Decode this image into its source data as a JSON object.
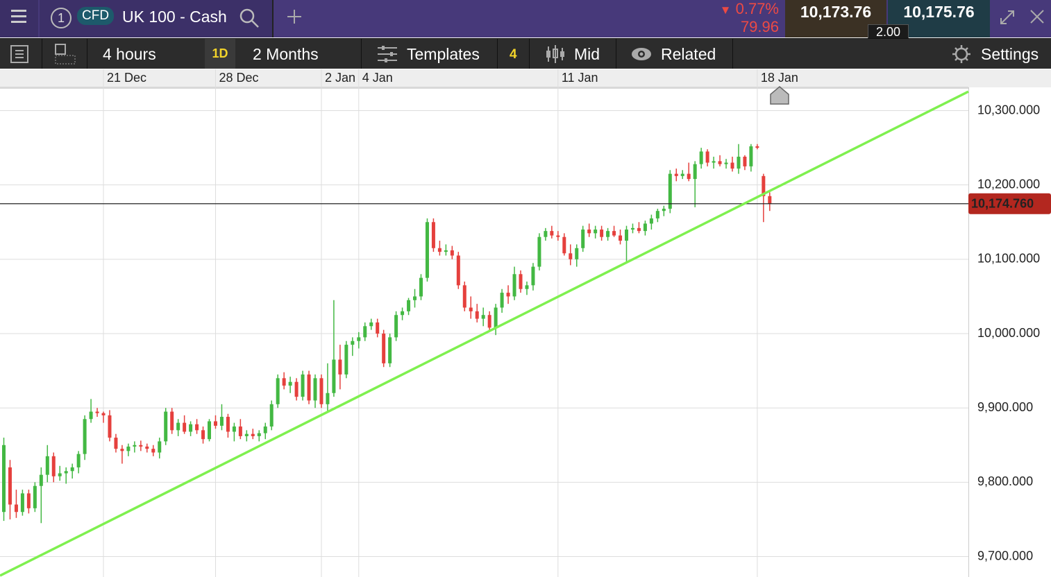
{
  "header": {
    "tab_number": "1",
    "instrument_type": "CFD",
    "instrument_name": "UK 100 - Cash",
    "change_percent": "0.77%",
    "change_points": "79.96",
    "sell_price": "10,173.76",
    "buy_price": "10,175.76",
    "spread": "2.00"
  },
  "toolbar": {
    "interval": "4 hours",
    "interval_badge": "1D",
    "range": "2 Months",
    "templates": "Templates",
    "templates_count": "4",
    "price_type": "Mid",
    "related": "Related",
    "settings": "Settings"
  },
  "chart_data": {
    "type": "candlestick",
    "categories": [
      null,
      null,
      null,
      null,
      null,
      null,
      null,
      null,
      null,
      null,
      null,
      null,
      null,
      null,
      null,
      null,
      "21 Dec",
      null,
      null,
      null,
      null,
      null,
      null,
      null,
      null,
      null,
      null,
      null,
      null,
      null,
      null,
      null,
      null,
      null,
      "28 Dec",
      null,
      null,
      null,
      null,
      null,
      null,
      null,
      null,
      null,
      null,
      null,
      null,
      null,
      null,
      null,
      null,
      "2 Jan",
      null,
      null,
      null,
      null,
      null,
      "4 Jan",
      null,
      null,
      null,
      null,
      null,
      null,
      null,
      null,
      null,
      null,
      null,
      null,
      null,
      null,
      null,
      null,
      null,
      null,
      null,
      null,
      null,
      null,
      null,
      null,
      null,
      null,
      null,
      null,
      null,
      null,
      null,
      "11 Jan",
      null,
      null,
      null,
      null,
      null,
      null,
      null,
      null,
      null,
      null,
      null,
      null,
      null,
      null,
      null,
      null,
      null,
      null,
      null,
      null,
      null,
      null,
      null,
      null,
      null,
      null,
      null,
      null,
      null,
      null,
      null,
      "18 Jan",
      null,
      null
    ],
    "candles": [
      [
        9760,
        9860,
        9748,
        9850
      ],
      [
        9820,
        9830,
        9750,
        9770
      ],
      [
        9770,
        9790,
        9752,
        9760
      ],
      [
        9760,
        9790,
        9755,
        9785
      ],
      [
        9785,
        9790,
        9758,
        9765
      ],
      [
        9765,
        9800,
        9760,
        9795
      ],
      [
        9795,
        9820,
        9745,
        9810
      ],
      [
        9810,
        9850,
        9800,
        9835
      ],
      [
        9835,
        9840,
        9800,
        9808
      ],
      [
        9808,
        9822,
        9802,
        9812
      ],
      [
        9812,
        9820,
        9798,
        9815
      ],
      [
        9815,
        9825,
        9805,
        9820
      ],
      [
        9820,
        9842,
        9812,
        9838
      ],
      [
        9838,
        9890,
        9830,
        9885
      ],
      [
        9885,
        9912,
        9880,
        9895
      ],
      [
        9895,
        9900,
        9888,
        9893
      ],
      [
        9893,
        9895,
        9880,
        9890
      ],
      [
        9890,
        9897,
        9855,
        9860
      ],
      [
        9860,
        9865,
        9840,
        9845
      ],
      [
        9845,
        9850,
        9825,
        9842
      ],
      [
        9842,
        9852,
        9835,
        9848
      ],
      [
        9848,
        9855,
        9840,
        9850
      ],
      [
        9850,
        9856,
        9842,
        9848
      ],
      [
        9848,
        9852,
        9840,
        9845
      ],
      [
        9845,
        9850,
        9835,
        9840
      ],
      [
        9840,
        9860,
        9832,
        9855
      ],
      [
        9855,
        9900,
        9850,
        9895
      ],
      [
        9895,
        9900,
        9865,
        9870
      ],
      [
        9870,
        9885,
        9862,
        9880
      ],
      [
        9880,
        9890,
        9865,
        9868
      ],
      [
        9868,
        9882,
        9862,
        9878
      ],
      [
        9878,
        9885,
        9865,
        9870
      ],
      [
        9870,
        9875,
        9852,
        9858
      ],
      [
        9858,
        9885,
        9855,
        9882
      ],
      [
        9882,
        9890,
        9872,
        9876
      ],
      [
        9876,
        9905,
        9870,
        9888
      ],
      [
        9888,
        9892,
        9860,
        9868
      ],
      [
        9868,
        9880,
        9855,
        9875
      ],
      [
        9875,
        9885,
        9858,
        9862
      ],
      [
        9862,
        9870,
        9855,
        9865
      ],
      [
        9865,
        9872,
        9858,
        9862
      ],
      [
        9862,
        9870,
        9855,
        9866
      ],
      [
        9866,
        9880,
        9858,
        9875
      ],
      [
        9875,
        9910,
        9870,
        9905
      ],
      [
        9905,
        9945,
        9900,
        9940
      ],
      [
        9940,
        9948,
        9925,
        9930
      ],
      [
        9930,
        9942,
        9920,
        9935
      ],
      [
        9935,
        9940,
        9910,
        9915
      ],
      [
        9915,
        9950,
        9910,
        9945
      ],
      [
        9945,
        9950,
        9905,
        9910
      ],
      [
        9910,
        9945,
        9900,
        9940
      ],
      [
        9940,
        9945,
        9900,
        9905
      ],
      [
        9905,
        9960,
        9895,
        9920
      ],
      [
        9920,
        10045,
        9915,
        9965
      ],
      [
        9965,
        9985,
        9925,
        9945
      ],
      [
        9945,
        9990,
        9940,
        9985
      ],
      [
        9985,
        9995,
        9970,
        9990
      ],
      [
        9990,
        10002,
        9980,
        9995
      ],
      [
        9995,
        10015,
        9990,
        10010
      ],
      [
        10010,
        10020,
        10005,
        10015
      ],
      [
        10015,
        10020,
        9995,
        10000
      ],
      [
        10000,
        10005,
        9955,
        9960
      ],
      [
        9960,
        10000,
        9955,
        9995
      ],
      [
        9995,
        10030,
        9990,
        10025
      ],
      [
        10025,
        10035,
        10018,
        10030
      ],
      [
        10030,
        10048,
        10025,
        10045
      ],
      [
        10045,
        10060,
        10035,
        10050
      ],
      [
        10050,
        10080,
        10045,
        10075
      ],
      [
        10075,
        10155,
        10070,
        10150
      ],
      [
        10150,
        10155,
        10110,
        10115
      ],
      [
        10115,
        10125,
        10105,
        10110
      ],
      [
        10110,
        10120,
        10105,
        10112
      ],
      [
        10112,
        10118,
        10100,
        10105
      ],
      [
        10105,
        10110,
        10060,
        10065
      ],
      [
        10065,
        10070,
        10030,
        10035
      ],
      [
        10035,
        10050,
        10020,
        10030
      ],
      [
        10030,
        10040,
        10015,
        10020
      ],
      [
        10020,
        10035,
        10010,
        10025
      ],
      [
        10025,
        10030,
        10005,
        10008
      ],
      [
        10008,
        10040,
        9998,
        10035
      ],
      [
        10035,
        10060,
        10028,
        10055
      ],
      [
        10055,
        10065,
        10040,
        10050
      ],
      [
        10050,
        10090,
        10045,
        10080
      ],
      [
        10080,
        10085,
        10055,
        10060
      ],
      [
        10060,
        10070,
        10052,
        10065
      ],
      [
        10065,
        10095,
        10058,
        10090
      ],
      [
        10090,
        10135,
        10085,
        10130
      ],
      [
        10130,
        10142,
        10125,
        10138
      ],
      [
        10138,
        10145,
        10128,
        10132
      ],
      [
        10132,
        10138,
        10125,
        10130
      ],
      [
        10130,
        10135,
        10105,
        10108
      ],
      [
        10108,
        10120,
        10092,
        10100
      ],
      [
        10100,
        10120,
        10090,
        10115
      ],
      [
        10115,
        10145,
        10110,
        10140
      ],
      [
        10140,
        10148,
        10130,
        10135
      ],
      [
        10135,
        10145,
        10128,
        10140
      ],
      [
        10140,
        10145,
        10125,
        10130
      ],
      [
        10130,
        10142,
        10125,
        10138
      ],
      [
        10138,
        10145,
        10130,
        10132
      ],
      [
        10132,
        10140,
        10120,
        10125
      ],
      [
        10125,
        10145,
        10095,
        10140
      ],
      [
        10140,
        10148,
        10135,
        10142
      ],
      [
        10142,
        10150,
        10135,
        10138
      ],
      [
        10138,
        10152,
        10132,
        10148
      ],
      [
        10148,
        10160,
        10140,
        10155
      ],
      [
        10155,
        10168,
        10150,
        10165
      ],
      [
        10165,
        10172,
        10158,
        10168
      ],
      [
        10168,
        10220,
        10162,
        10215
      ],
      [
        10215,
        10222,
        10205,
        10212
      ],
      [
        10212,
        10220,
        10208,
        10215
      ],
      [
        10215,
        10230,
        10205,
        10208
      ],
      [
        10208,
        10232,
        10170,
        10228
      ],
      [
        10228,
        10250,
        10222,
        10245
      ],
      [
        10245,
        10248,
        10225,
        10230
      ],
      [
        10230,
        10238,
        10222,
        10232
      ],
      [
        10232,
        10240,
        10225,
        10228
      ],
      [
        10228,
        10235,
        10222,
        10230
      ],
      [
        10230,
        10238,
        10218,
        10222
      ],
      [
        10222,
        10255,
        10215,
        10238
      ],
      [
        10238,
        10240,
        10220,
        10225
      ],
      [
        10225,
        10255,
        10218,
        10252
      ],
      [
        10252,
        10255,
        10248,
        10250
      ],
      [
        10212,
        10215,
        10150,
        10185
      ],
      [
        10185,
        10190,
        10165,
        10175
      ]
    ],
    "up_color": "#43b843",
    "down_color": "#e5403d",
    "ylim": [
      9672.5,
      10329.4
    ],
    "yticks": [
      {
        "value": 9700,
        "label": "9,700.000"
      },
      {
        "value": 9800,
        "label": "9,800.000"
      },
      {
        "value": 9900,
        "label": "9,900.000"
      },
      {
        "value": 10000,
        "label": "10,000.000"
      },
      {
        "value": 10100,
        "label": "10,100.000"
      },
      {
        "value": 10200,
        "label": "10,200.000"
      },
      {
        "value": 10300,
        "label": "10,300.000"
      }
    ],
    "grid": true,
    "current_price": {
      "value": 10174.76,
      "label": "10,174.760"
    },
    "trendline": {
      "x": [
        -0.61,
        154.9
      ],
      "values": [
        9674.3,
        10325.6
      ],
      "color": "#7ff04f"
    }
  }
}
